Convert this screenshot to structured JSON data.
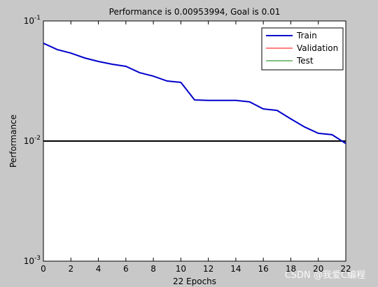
{
  "chart_data": {
    "type": "line",
    "title": "Performance is 0.00953994, Goal is 0.01",
    "xlabel": "22 Epochs",
    "ylabel": "Performance",
    "x": [
      0,
      1,
      2,
      3,
      4,
      5,
      6,
      7,
      8,
      9,
      10,
      11,
      12,
      13,
      14,
      15,
      16,
      17,
      18,
      19,
      20,
      21,
      22
    ],
    "series": [
      {
        "name": "Train",
        "color": "#0000cc",
        "values": [
          0.0652,
          0.0578,
          0.054,
          0.0492,
          0.046,
          0.0436,
          0.0419,
          0.0371,
          0.0347,
          0.0316,
          0.0308,
          0.022,
          0.0218,
          0.0218,
          0.0218,
          0.0212,
          0.0185,
          0.018,
          0.0153,
          0.0131,
          0.0116,
          0.0113,
          0.00953994
        ]
      },
      {
        "name": "Validation",
        "color": "#ff0000",
        "values": [
          null,
          null,
          null,
          null,
          null,
          null,
          null,
          null,
          null,
          null,
          null,
          null,
          null,
          null,
          null,
          null,
          null,
          null,
          null,
          null,
          null,
          null,
          null
        ]
      },
      {
        "name": "Test",
        "color": "#008000",
        "values": [
          null,
          null,
          null,
          null,
          null,
          null,
          null,
          null,
          null,
          null,
          null,
          null,
          null,
          null,
          null,
          null,
          null,
          null,
          null,
          null,
          null,
          null,
          null
        ]
      }
    ],
    "goal": 0.01,
    "goal_color": "#000000",
    "xlim": [
      0,
      22
    ],
    "xticks": [
      0,
      2,
      4,
      6,
      8,
      10,
      12,
      14,
      16,
      18,
      20,
      22
    ],
    "ylim": [
      0.001,
      0.1
    ],
    "yticks": [
      {
        "value": 0.001,
        "label": "10^-3"
      },
      {
        "value": 0.01,
        "label": "10^-2"
      },
      {
        "value": 0.1,
        "label": "10^-1"
      }
    ],
    "log_y": true,
    "legend": "northeast",
    "annotation": "CSDN @我爱C编程"
  }
}
